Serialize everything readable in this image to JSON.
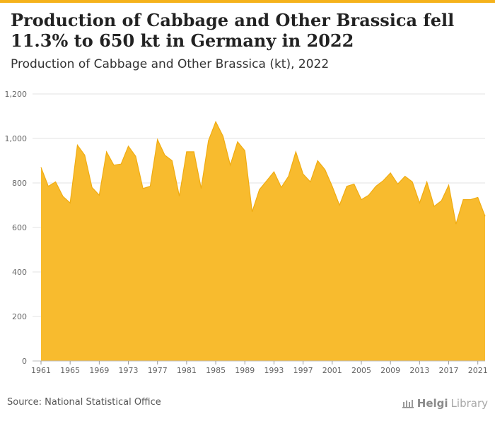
{
  "title": "Production of Cabbage and Other Brassica fell 11.3% to 650 kt in Germany in 2022",
  "subtitle": "Production of Cabbage and Other Brassica (kt), 2022",
  "source": "Source: National Statistical Office",
  "brand": {
    "part1": "Helgi",
    "part2": "Library",
    "icon": "library-building-icon"
  },
  "colors": {
    "area": "#f8bb2e",
    "line": "#f0ac12",
    "accent": "#f5b21b",
    "grid": "#e3e3e3"
  },
  "chart_data": {
    "type": "area",
    "title": "Production of Cabbage and Other Brassica (kt), 2022",
    "xlabel": "",
    "ylabel": "",
    "ylim": [
      0,
      1200
    ],
    "yticks": [
      0,
      200,
      400,
      600,
      800,
      1000,
      1200
    ],
    "ytick_labels": [
      "0",
      "200",
      "400",
      "600",
      "800",
      "1,000",
      "1,200"
    ],
    "xticks": [
      1961,
      1965,
      1969,
      1973,
      1977,
      1981,
      1985,
      1989,
      1993,
      1997,
      2001,
      2005,
      2009,
      2013,
      2017,
      2021
    ],
    "grid": true,
    "x": [
      1961,
      1962,
      1963,
      1964,
      1965,
      1966,
      1967,
      1968,
      1969,
      1970,
      1971,
      1972,
      1973,
      1974,
      1975,
      1976,
      1977,
      1978,
      1979,
      1980,
      1981,
      1982,
      1983,
      1984,
      1985,
      1986,
      1987,
      1988,
      1989,
      1990,
      1991,
      1992,
      1993,
      1994,
      1995,
      1996,
      1997,
      1998,
      1999,
      2000,
      2001,
      2002,
      2003,
      2004,
      2005,
      2006,
      2007,
      2008,
      2009,
      2010,
      2011,
      2012,
      2013,
      2014,
      2015,
      2016,
      2017,
      2018,
      2019,
      2020,
      2021,
      2022
    ],
    "series": [
      {
        "values": [
          870,
          785,
          805,
          740,
          710,
          970,
          925,
          780,
          745,
          940,
          880,
          885,
          965,
          920,
          775,
          785,
          995,
          925,
          900,
          740,
          940,
          940,
          775,
          990,
          1075,
          1010,
          880,
          985,
          945,
          670,
          770,
          810,
          850,
          780,
          830,
          940,
          840,
          805,
          900,
          860,
          785,
          700,
          785,
          795,
          725,
          745,
          785,
          810,
          845,
          795,
          830,
          805,
          710,
          805,
          695,
          720,
          790,
          615,
          725,
          725,
          735,
          650
        ]
      }
    ]
  }
}
